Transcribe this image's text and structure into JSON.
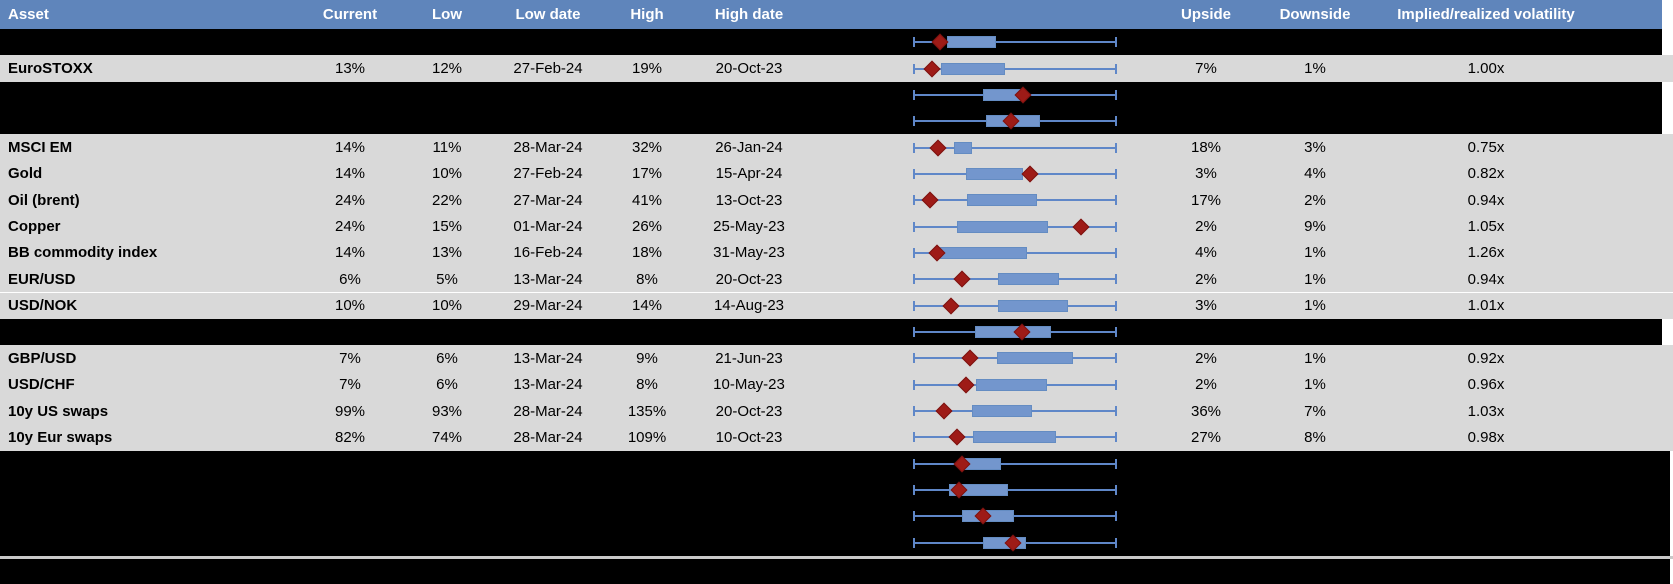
{
  "header": {
    "columns": [
      {
        "key": "asset",
        "label": "Asset"
      },
      {
        "key": "current",
        "label": "Current"
      },
      {
        "key": "low",
        "label": "Low"
      },
      {
        "key": "low_date",
        "label": "Low date"
      },
      {
        "key": "high",
        "label": "High"
      },
      {
        "key": "high_date",
        "label": "High date"
      },
      {
        "key": "upside",
        "label": "Upside"
      },
      {
        "key": "downside",
        "label": "Downside"
      },
      {
        "key": "implied",
        "label": "Implied/realized volatility"
      }
    ]
  },
  "colors": {
    "header_bg": "#5f85bb",
    "data_row_bg": "#d9d9d9",
    "hidden_row_bg": "#000000",
    "box_fill": "#7396cd",
    "whisker_blue": "#5f87c8",
    "marker_red": "#9e1b17",
    "separator_gray": "#c9c9c9",
    "header_text": "#ffffff",
    "cell_text": "#000000"
  },
  "plot_legend": {
    "whisker_meaning": "low-high range",
    "box_meaning": "interquartile range",
    "marker_meaning": "current level"
  },
  "rows": [
    {
      "type": "hidden",
      "plot": {
        "box": [
          0.167,
          0.407
        ],
        "marker": 0.132
      }
    },
    {
      "type": "data",
      "asset": "EuroSTOXX",
      "current": "13%",
      "low": "12%",
      "low_date": "27-Feb-24",
      "high": "19%",
      "high_date": "20-Oct-23",
      "upside": "7%",
      "downside": "1%",
      "implied": "1.00x",
      "plot": {
        "box": [
          0.137,
          0.451
        ],
        "marker": 0.093
      }
    },
    {
      "type": "hidden",
      "plot": {
        "box": [
          0.343,
          0.549
        ],
        "marker": 0.539
      }
    },
    {
      "type": "hidden",
      "plot": {
        "box": [
          0.358,
          0.623
        ],
        "marker": 0.48
      }
    },
    {
      "type": "data",
      "asset": "MSCI EM",
      "current": "14%",
      "low": "11%",
      "low_date": "28-Mar-24",
      "high": "32%",
      "high_date": "26-Jan-24",
      "upside": "18%",
      "downside": "3%",
      "implied": "0.75x",
      "plot": {
        "box": [
          0.201,
          0.289
        ],
        "marker": 0.123
      }
    },
    {
      "type": "data",
      "asset": "Gold",
      "current": "14%",
      "low": "10%",
      "low_date": "27-Feb-24",
      "high": "17%",
      "high_date": "15-Apr-24",
      "upside": "3%",
      "downside": "4%",
      "implied": "0.82x",
      "plot": {
        "box": [
          0.26,
          0.539
        ],
        "marker": 0.574
      }
    },
    {
      "type": "data",
      "asset": "Oil (brent)",
      "current": "24%",
      "low": "22%",
      "low_date": "27-Mar-24",
      "high": "41%",
      "high_date": "13-Oct-23",
      "upside": "17%",
      "downside": "2%",
      "implied": "0.94x",
      "plot": {
        "box": [
          0.265,
          0.608
        ],
        "marker": 0.083
      }
    },
    {
      "type": "data",
      "asset": "Copper",
      "current": "24%",
      "low": "15%",
      "low_date": "01-Mar-24",
      "high": "26%",
      "high_date": "25-May-23",
      "upside": "2%",
      "downside": "9%",
      "implied": "1.05x",
      "plot": {
        "box": [
          0.216,
          0.662
        ],
        "marker": 0.824
      }
    },
    {
      "type": "data",
      "asset": "BB commodity index",
      "current": "14%",
      "low": "13%",
      "low_date": "16-Feb-24",
      "high": "18%",
      "high_date": "31-May-23",
      "upside": "4%",
      "downside": "1%",
      "implied": "1.26x",
      "plot": {
        "box": [
          0.132,
          0.559
        ],
        "marker": 0.118
      }
    },
    {
      "type": "data",
      "asset": "EUR/USD",
      "current": "6%",
      "low": "5%",
      "low_date": "13-Mar-24",
      "high": "8%",
      "high_date": "20-Oct-23",
      "upside": "2%",
      "downside": "1%",
      "implied": "0.94x",
      "plot": {
        "box": [
          0.417,
          0.716
        ],
        "marker": 0.24
      }
    },
    {
      "type": "data",
      "asset": "USD/NOK",
      "current": "10%",
      "low": "10%",
      "low_date": "29-Mar-24",
      "high": "14%",
      "high_date": "14-Aug-23",
      "upside": "3%",
      "downside": "1%",
      "implied": "1.01x",
      "plot": {
        "box": [
          0.417,
          0.76
        ],
        "marker": 0.186
      }
    },
    {
      "type": "hidden",
      "plot": {
        "box": [
          0.304,
          0.677
        ],
        "marker": 0.534
      }
    },
    {
      "type": "data",
      "asset": "GBP/USD",
      "current": "7%",
      "low": "6%",
      "low_date": "13-Mar-24",
      "high": "9%",
      "high_date": "21-Jun-23",
      "upside": "2%",
      "downside": "1%",
      "implied": "0.92x",
      "plot": {
        "box": [
          0.412,
          0.784
        ],
        "marker": 0.279
      }
    },
    {
      "type": "data",
      "asset": "USD/CHF",
      "current": "7%",
      "low": "6%",
      "low_date": "13-Mar-24",
      "high": "8%",
      "high_date": "10-May-23",
      "upside": "2%",
      "downside": "1%",
      "implied": "0.96x",
      "plot": {
        "box": [
          0.309,
          0.657
        ],
        "marker": 0.26
      }
    },
    {
      "type": "data",
      "asset": "10y US swaps",
      "current": "99%",
      "low": "93%",
      "low_date": "28-Mar-24",
      "high": "135%",
      "high_date": "20-Oct-23",
      "upside": "36%",
      "downside": "7%",
      "implied": "1.03x",
      "plot": {
        "box": [
          0.289,
          0.583
        ],
        "marker": 0.152
      }
    },
    {
      "type": "data",
      "asset": "10y Eur swaps",
      "current": "82%",
      "low": "74%",
      "low_date": "28-Mar-24",
      "high": "109%",
      "high_date": "10-Oct-23",
      "upside": "27%",
      "downside": "8%",
      "implied": "0.98x",
      "plot": {
        "box": [
          0.294,
          0.701
        ],
        "marker": 0.216
      }
    },
    {
      "type": "hidden",
      "wide": true,
      "plot": {
        "box": [
          0.23,
          0.431
        ],
        "marker": 0.24
      }
    },
    {
      "type": "hidden",
      "wide": true,
      "plot": {
        "box": [
          0.176,
          0.466
        ],
        "marker": 0.225
      }
    },
    {
      "type": "hidden",
      "wide": true,
      "plot": {
        "box": [
          0.24,
          0.495
        ],
        "marker": 0.343
      }
    },
    {
      "type": "hidden",
      "wide": true,
      "plot": {
        "box": [
          0.343,
          0.554
        ],
        "marker": 0.49
      }
    }
  ]
}
